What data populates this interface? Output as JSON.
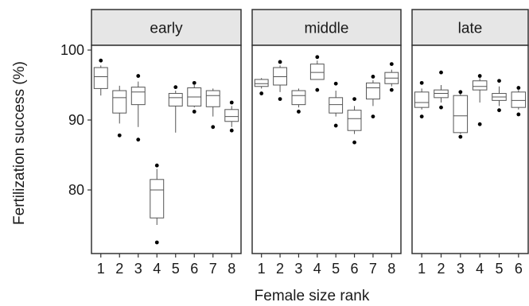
{
  "chart_data": {
    "type": "boxplot",
    "xlabel": "Female size rank",
    "ylabel": "Fertilization success (%)",
    "ylim": [
      70,
      105
    ],
    "yticks": [
      80,
      90,
      100
    ],
    "grid": false,
    "facets": [
      {
        "label": "early",
        "categories": [
          "1",
          "2",
          "3",
          "4",
          "5",
          "6",
          "7",
          "8"
        ],
        "boxes": [
          {
            "min": 93.5,
            "q1": 94.5,
            "median": 96.2,
            "q3": 97.5,
            "max": 97.8,
            "outliers": [
              98.5
            ]
          },
          {
            "min": 89.5,
            "q1": 91.0,
            "median": 93.2,
            "q3": 94.2,
            "max": 94.9,
            "outliers": [
              87.8
            ]
          },
          {
            "min": 89.0,
            "q1": 92.2,
            "median": 94.0,
            "q3": 94.7,
            "max": 95.5,
            "outliers": [
              87.2,
              96.3
            ]
          },
          {
            "min": 75.0,
            "q1": 76.0,
            "median": 80.0,
            "q3": 81.5,
            "max": 83.0,
            "outliers": [
              72.5,
              83.5
            ]
          },
          {
            "min": 88.2,
            "q1": 92.0,
            "median": 93.2,
            "q3": 93.8,
            "max": 94.2,
            "outliers": [
              94.7
            ]
          },
          {
            "min": 91.8,
            "q1": 92.0,
            "median": 93.3,
            "q3": 94.6,
            "max": 95.0,
            "outliers": [
              91.2,
              95.3
            ]
          },
          {
            "min": 90.5,
            "q1": 91.9,
            "median": 93.5,
            "q3": 94.2,
            "max": 94.5,
            "outliers": [
              89.0
            ]
          },
          {
            "min": 89.0,
            "q1": 89.8,
            "median": 90.5,
            "q3": 91.5,
            "max": 92.0,
            "outliers": [
              88.5,
              92.5
            ]
          }
        ]
      },
      {
        "label": "middle",
        "categories": [
          "1",
          "2",
          "3",
          "4",
          "5",
          "6",
          "7",
          "8"
        ],
        "boxes": [
          {
            "min": 94.5,
            "q1": 94.8,
            "median": 95.2,
            "q3": 95.8,
            "max": 96.0,
            "outliers": [
              93.8
            ]
          },
          {
            "min": 94.0,
            "q1": 95.0,
            "median": 96.2,
            "q3": 97.5,
            "max": 97.8,
            "outliers": [
              93.0,
              98.3
            ]
          },
          {
            "min": 91.8,
            "q1": 92.2,
            "median": 93.5,
            "q3": 94.2,
            "max": 94.5,
            "outliers": [
              91.2
            ]
          },
          {
            "min": 95.8,
            "q1": 95.8,
            "median": 96.8,
            "q3": 98.0,
            "max": 98.5,
            "outliers": [
              94.3,
              99.0
            ]
          },
          {
            "min": 90.5,
            "q1": 91.0,
            "median": 92.2,
            "q3": 93.2,
            "max": 94.2,
            "outliers": [
              89.2,
              95.2
            ]
          },
          {
            "min": 88.0,
            "q1": 88.5,
            "median": 90.2,
            "q3": 91.4,
            "max": 92.0,
            "outliers": [
              86.8,
              93.0
            ]
          },
          {
            "min": 92.0,
            "q1": 93.0,
            "median": 94.6,
            "q3": 95.3,
            "max": 95.7,
            "outliers": [
              90.5,
              96.2
            ]
          },
          {
            "min": 94.8,
            "q1": 95.2,
            "median": 96.0,
            "q3": 96.8,
            "max": 97.2,
            "outliers": [
              94.3,
              98.0
            ]
          }
        ]
      },
      {
        "label": "late",
        "categories": [
          "1",
          "2",
          "3",
          "4",
          "5",
          "6"
        ],
        "boxes": [
          {
            "min": 91.5,
            "q1": 91.8,
            "median": 92.5,
            "q3": 94.0,
            "max": 94.5,
            "outliers": [
              90.5,
              95.3
            ]
          },
          {
            "min": 92.5,
            "q1": 93.2,
            "median": 93.8,
            "q3": 94.3,
            "max": 95.0,
            "outliers": [
              91.8,
              96.8
            ]
          },
          {
            "min": 88.0,
            "q1": 88.2,
            "median": 90.6,
            "q3": 93.5,
            "max": 94.0,
            "outliers": [
              87.6,
              94.0
            ]
          },
          {
            "min": 92.5,
            "q1": 94.3,
            "median": 94.8,
            "q3": 95.6,
            "max": 96.0,
            "outliers": [
              89.4,
              96.3
            ]
          },
          {
            "min": 92.0,
            "q1": 92.8,
            "median": 93.3,
            "q3": 93.8,
            "max": 94.8,
            "outliers": [
              91.4,
              95.6
            ]
          },
          {
            "min": 91.5,
            "q1": 91.8,
            "median": 92.8,
            "q3": 94.0,
            "max": 94.3,
            "outliers": [
              90.8,
              94.6
            ]
          }
        ]
      }
    ]
  },
  "colors": {
    "strip_fill": "#e6e6e6",
    "panel_border": "#333333",
    "box_stroke": "#555555",
    "point": "#000000",
    "text": "#1a1a1a"
  }
}
